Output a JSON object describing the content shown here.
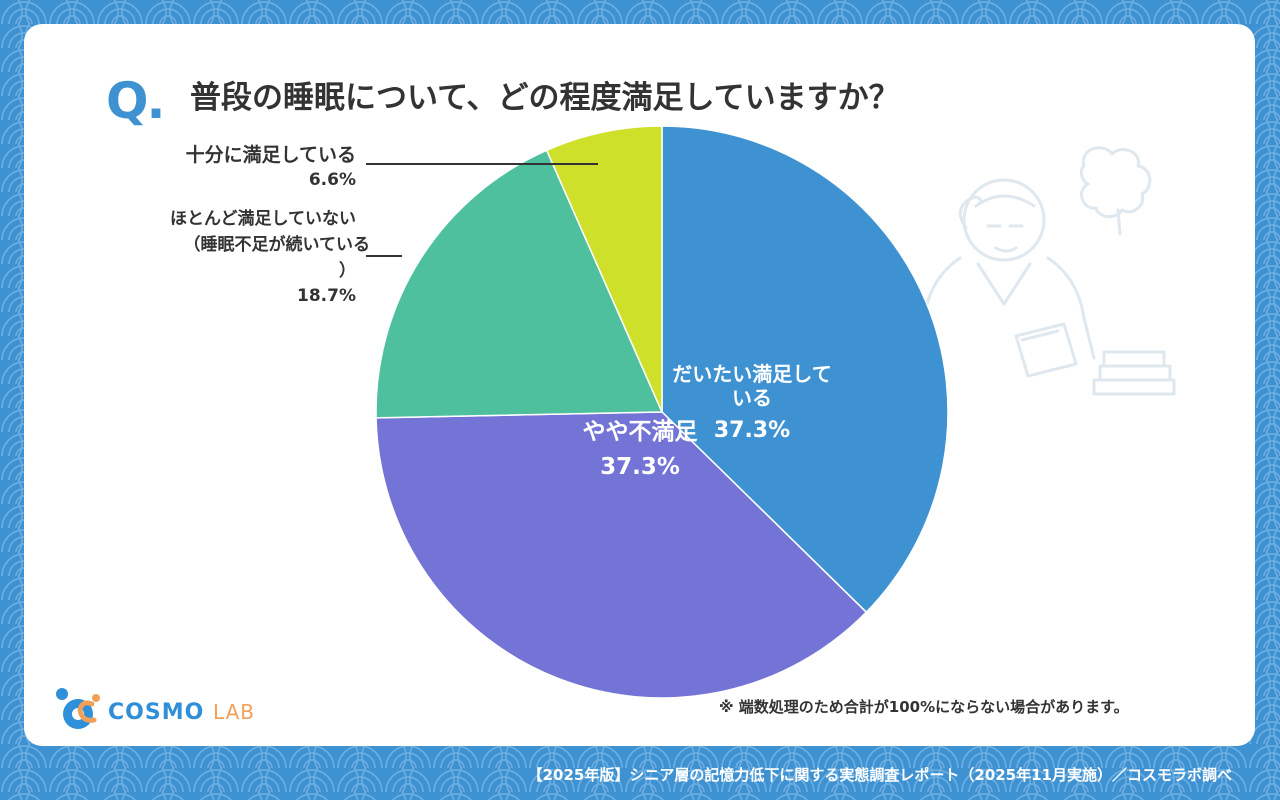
{
  "question": {
    "mark": "Q.",
    "text": "普段の睡眠について、どの程度満足していますか？"
  },
  "chart_data": {
    "type": "pie",
    "title": "普段の睡眠について、どの程度満足していますか？",
    "slices": [
      {
        "label": "だいたい満足している",
        "value": 37.3,
        "value_label": "37.3%",
        "color": "#3f92d2"
      },
      {
        "label": "やや不満足",
        "value": 37.3,
        "value_label": "37.3%",
        "color": "#7474d6"
      },
      {
        "label": "ほとんど満足していない（睡眠不足が続いている）",
        "value": 18.7,
        "value_label": "18.7%",
        "color": "#4fc09e"
      },
      {
        "label": "十分に満足している",
        "value": 6.6,
        "value_label": "6.6%",
        "color": "#cfe02b"
      }
    ],
    "start_angle_deg": 0,
    "direction": "clockwise"
  },
  "labels": {
    "satisfied_name": "十分に満足している",
    "satisfied_value": "6.6%",
    "unsatisfied_line1": "ほとんど満足していない",
    "unsatisfied_line2": "（睡眠不足が続いている",
    "unsatisfied_line3": "）",
    "unsatisfied_value": "18.7%",
    "mostly_line1": "だいたい満足して",
    "mostly_line2": "いる",
    "mostly_value": "37.3%",
    "some_line1": "やや不満足",
    "some_value": "37.3%"
  },
  "logo": {
    "brand": "COSMO",
    "lab": "LAB"
  },
  "note": "※ 端数処理のため合計が100%にならない場合があります。",
  "footer": "【2025年版】シニア層の記憶力低下に関する実態調査レポート（2025年11月実施）／コスモラボ調べ",
  "colors": {
    "background": "#3f92d2",
    "card": "#ffffff",
    "text": "#333333"
  }
}
